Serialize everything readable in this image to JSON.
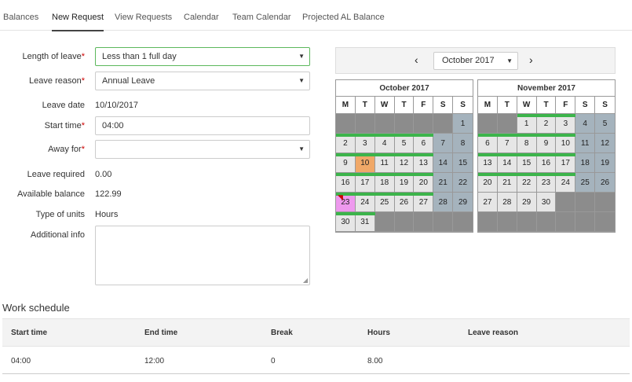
{
  "tabs": [
    "Balances",
    "New Request",
    "View Requests",
    "Calendar",
    "Team Calendar",
    "Projected AL Balance"
  ],
  "form": {
    "length_label": "Length of leave",
    "length_value": "Less than 1 full day",
    "reason_label": "Leave reason",
    "reason_value": "Annual Leave",
    "date_label": "Leave date",
    "date_value": "10/10/2017",
    "start_label": "Start time",
    "start_value": "04:00",
    "away_label": "Away for",
    "away_value": "",
    "required_label": "Leave required",
    "required_value": "0.00",
    "balance_label": "Available balance",
    "balance_value": "122.99",
    "units_label": "Type of units",
    "units_value": "Hours",
    "info_label": "Additional info",
    "required_marker": "*"
  },
  "calendar_nav": {
    "prev": "‹",
    "next": "›",
    "selected_month": "October 2017"
  },
  "calendar": {
    "weekday_headers": [
      "M",
      "T",
      "W",
      "T",
      "F",
      "S",
      "S"
    ],
    "months": [
      {
        "title": "October 2017",
        "offset": 6,
        "days": 31,
        "trailing_empty": 5,
        "selected_day": 10,
        "leave_day": 23,
        "bars": [
          2,
          3,
          4,
          5,
          6,
          9,
          10,
          11,
          12,
          13,
          16,
          17,
          18,
          19,
          20,
          23,
          24,
          25,
          26,
          27,
          30,
          31
        ]
      },
      {
        "title": "November 2017",
        "offset": 2,
        "days": 30,
        "trailing_empty": 10,
        "selected_day": null,
        "leave_day": null,
        "bars": [
          1,
          2,
          3,
          6,
          7,
          8,
          9,
          10,
          13,
          14,
          15,
          16,
          17,
          20,
          21,
          22,
          23,
          24
        ]
      }
    ]
  },
  "colors": {
    "weekday_cell": "#e6e6e6",
    "weekend_cell": "#a5b3bd",
    "empty_cell": "#8c8c8c",
    "selected_cell": "#f0a868",
    "leave_cell": "#ee99ee",
    "schedule_bar": "#3cb44b"
  },
  "schedule": {
    "title": "Work schedule",
    "headers": [
      "Start time",
      "End time",
      "Break",
      "Hours",
      "Leave reason"
    ],
    "row": [
      "04:00",
      "12:00",
      "0",
      "8.00",
      ""
    ]
  }
}
